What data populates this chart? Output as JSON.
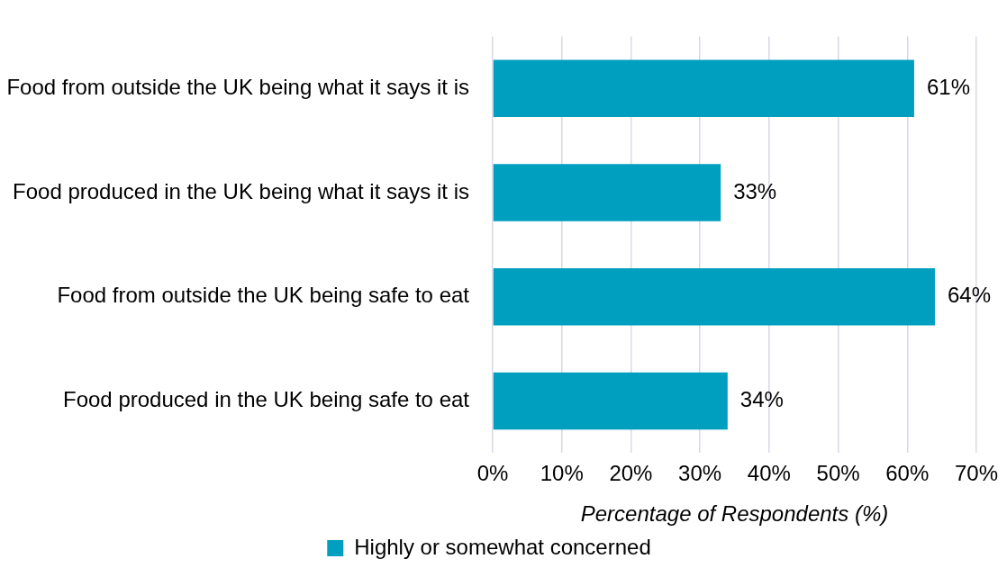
{
  "chart_data": {
    "type": "bar",
    "orientation": "horizontal",
    "xlabel": "Percentage of Respondents (%)",
    "categories": [
      "Food from outside the UK being what it says it is",
      "Food produced in the UK being what it says it is",
      "Food from outside the UK being safe to eat",
      "Food produced in the UK being safe to eat"
    ],
    "series": [
      {
        "name": "Highly or somewhat concerned",
        "color": "#009fbf",
        "values": [
          61,
          33,
          64,
          34
        ],
        "value_labels": [
          "61%",
          "33%",
          "64%",
          "34%"
        ]
      }
    ],
    "xlim": [
      0,
      70
    ],
    "xticks": [
      {
        "value": 0,
        "label": "0%"
      },
      {
        "value": 10,
        "label": "10%"
      },
      {
        "value": 20,
        "label": "20%"
      },
      {
        "value": 30,
        "label": "30%"
      },
      {
        "value": 40,
        "label": "40%"
      },
      {
        "value": 50,
        "label": "50%"
      },
      {
        "value": 60,
        "label": "60%"
      },
      {
        "value": 70,
        "label": "70%"
      }
    ],
    "grid": "x",
    "legend": "bottom"
  }
}
